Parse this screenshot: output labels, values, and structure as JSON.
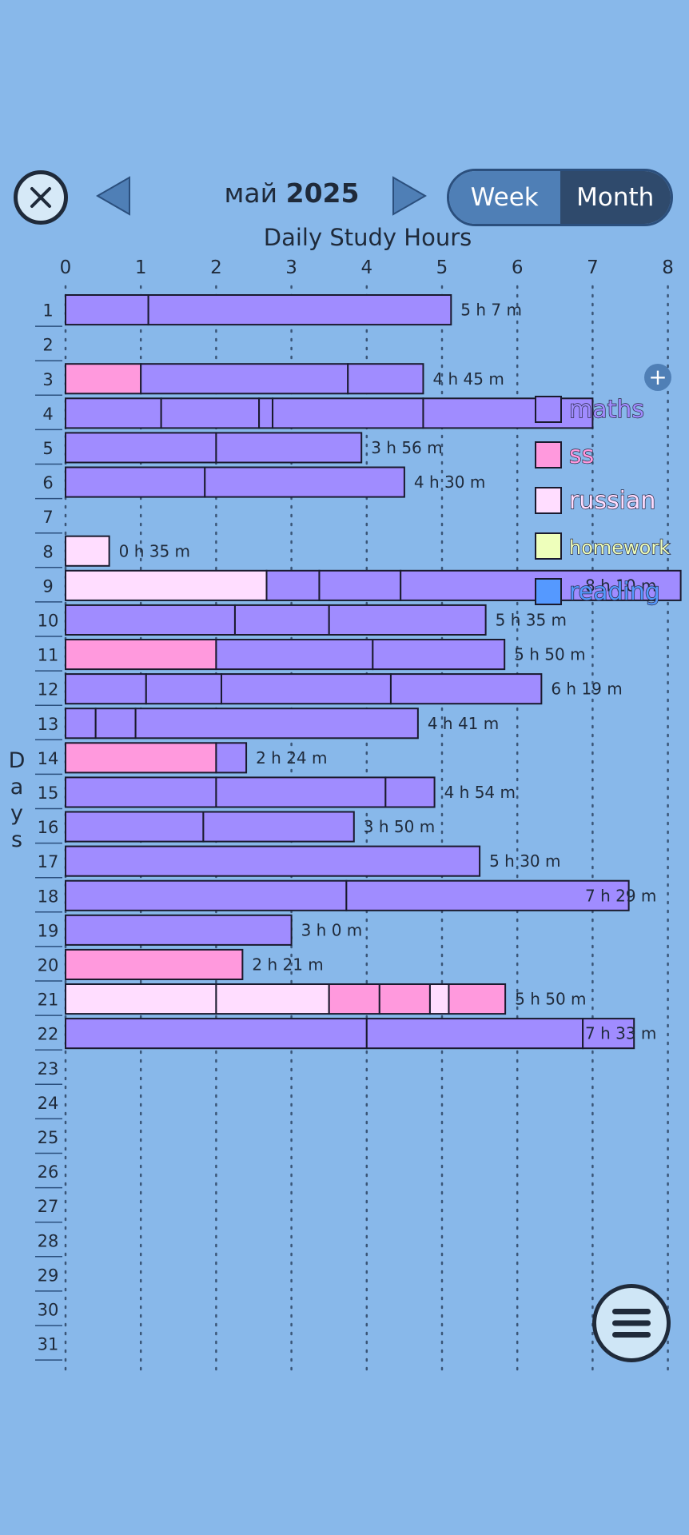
{
  "header": {
    "month": "май",
    "year": "2025",
    "toggle_week": "Week",
    "toggle_month": "Month",
    "selected_view": "Month"
  },
  "axis_title": "Days",
  "chart_data": {
    "type": "bar",
    "orientation": "horizontal",
    "stacked": true,
    "title": "Daily Study Hours",
    "xlabel": "",
    "ylabel": "Days",
    "xlim": [
      0,
      8
    ],
    "x_ticks": [
      "0",
      "1",
      "2",
      "3",
      "4",
      "5",
      "6",
      "7",
      "8"
    ],
    "grid": "vertical dotted",
    "categories": [
      "1",
      "2",
      "3",
      "4",
      "5",
      "6",
      "7",
      "8",
      "9",
      "10",
      "11",
      "12",
      "13",
      "14",
      "15",
      "16",
      "17",
      "18",
      "19",
      "20",
      "21",
      "22",
      "23",
      "24",
      "25",
      "26",
      "27",
      "28",
      "29",
      "30",
      "31"
    ],
    "legend": [
      {
        "name": "maths",
        "color": "#a08cff"
      },
      {
        "name": "ss",
        "color": "#ff99dd"
      },
      {
        "name": "russian",
        "color": "#ffddff"
      },
      {
        "name": "homework",
        "color": "#eeffbb"
      },
      {
        "name": "reading",
        "color": "#5599ff"
      }
    ],
    "legend_position": "right",
    "rows": [
      {
        "day": "1",
        "total_label": "5 h 7 m",
        "segments": [
          {
            "subject": "maths",
            "hours": 1.1
          },
          {
            "subject": "maths",
            "hours": 4.02
          }
        ]
      },
      {
        "day": "2",
        "total_label": "",
        "segments": []
      },
      {
        "day": "3",
        "total_label": "4 h 45 m",
        "segments": [
          {
            "subject": "ss",
            "hours": 1.0
          },
          {
            "subject": "maths",
            "hours": 2.75
          },
          {
            "subject": "maths",
            "hours": 1.0
          }
        ]
      },
      {
        "day": "4",
        "total_label": "",
        "segments": [
          {
            "subject": "maths",
            "hours": 1.27
          },
          {
            "subject": "maths",
            "hours": 1.3
          },
          {
            "subject": "maths",
            "hours": 0.18
          },
          {
            "subject": "maths",
            "hours": 2.0
          },
          {
            "subject": "maths",
            "hours": 2.25
          }
        ]
      },
      {
        "day": "5",
        "total_label": "3 h 56 m",
        "segments": [
          {
            "subject": "maths",
            "hours": 2.0
          },
          {
            "subject": "maths",
            "hours": 1.93
          }
        ]
      },
      {
        "day": "6",
        "total_label": "4 h 30 m",
        "segments": [
          {
            "subject": "maths",
            "hours": 1.85
          },
          {
            "subject": "maths",
            "hours": 2.65
          }
        ]
      },
      {
        "day": "7",
        "total_label": "",
        "segments": []
      },
      {
        "day": "8",
        "total_label": "0 h 35 m",
        "segments": [
          {
            "subject": "russian",
            "hours": 0.58
          }
        ]
      },
      {
        "day": "9",
        "total_label": "8 h 10 m",
        "segments": [
          {
            "subject": "russian",
            "hours": 2.67
          },
          {
            "subject": "maths",
            "hours": 0.7
          },
          {
            "subject": "maths",
            "hours": 1.08
          },
          {
            "subject": "maths",
            "hours": 3.72
          }
        ]
      },
      {
        "day": "10",
        "total_label": "5 h 35 m",
        "segments": [
          {
            "subject": "maths",
            "hours": 2.25
          },
          {
            "subject": "maths",
            "hours": 1.25
          },
          {
            "subject": "maths",
            "hours": 2.08
          }
        ]
      },
      {
        "day": "11",
        "total_label": "5 h 50 m",
        "segments": [
          {
            "subject": "ss",
            "hours": 2.0
          },
          {
            "subject": "maths",
            "hours": 2.08
          },
          {
            "subject": "maths",
            "hours": 1.75
          }
        ]
      },
      {
        "day": "12",
        "total_label": "6 h 19 m",
        "segments": [
          {
            "subject": "maths",
            "hours": 1.07
          },
          {
            "subject": "maths",
            "hours": 1.0
          },
          {
            "subject": "maths",
            "hours": 2.25
          },
          {
            "subject": "maths",
            "hours": 2.0
          }
        ]
      },
      {
        "day": "13",
        "total_label": "4 h 41 m",
        "segments": [
          {
            "subject": "maths",
            "hours": 0.4
          },
          {
            "subject": "maths",
            "hours": 0.53
          },
          {
            "subject": "maths",
            "hours": 3.75
          }
        ]
      },
      {
        "day": "14",
        "total_label": "2 h 24 m",
        "segments": [
          {
            "subject": "ss",
            "hours": 2.0
          },
          {
            "subject": "maths",
            "hours": 0.4
          }
        ]
      },
      {
        "day": "15",
        "total_label": "4 h 54 m",
        "segments": [
          {
            "subject": "maths",
            "hours": 2.0
          },
          {
            "subject": "maths",
            "hours": 2.25
          },
          {
            "subject": "maths",
            "hours": 0.65
          }
        ]
      },
      {
        "day": "16",
        "total_label": "3 h 50 m",
        "segments": [
          {
            "subject": "maths",
            "hours": 1.83
          },
          {
            "subject": "maths",
            "hours": 2.0
          }
        ]
      },
      {
        "day": "17",
        "total_label": "5 h 30 m",
        "segments": [
          {
            "subject": "maths",
            "hours": 5.5
          }
        ]
      },
      {
        "day": "18",
        "total_label": "7 h 29 m",
        "segments": [
          {
            "subject": "maths",
            "hours": 3.73
          },
          {
            "subject": "maths",
            "hours": 3.75
          }
        ]
      },
      {
        "day": "19",
        "total_label": "3 h 0 m",
        "segments": [
          {
            "subject": "maths",
            "hours": 3.0
          }
        ]
      },
      {
        "day": "20",
        "total_label": "2 h 21 m",
        "segments": [
          {
            "subject": "ss",
            "hours": 2.35
          }
        ]
      },
      {
        "day": "21",
        "total_label": "5 h 50 m",
        "segments": [
          {
            "subject": "russian",
            "hours": 2.0
          },
          {
            "subject": "russian",
            "hours": 1.5
          },
          {
            "subject": "ss",
            "hours": 0.67
          },
          {
            "subject": "ss",
            "hours": 0.67
          },
          {
            "subject": "russian",
            "hours": 0.25
          },
          {
            "subject": "ss",
            "hours": 0.75
          }
        ]
      },
      {
        "day": "22",
        "total_label": "7 h 33 m",
        "segments": [
          {
            "subject": "maths",
            "hours": 4.0
          },
          {
            "subject": "maths",
            "hours": 2.87
          },
          {
            "subject": "maths",
            "hours": 0.68
          }
        ]
      },
      {
        "day": "23",
        "total_label": "",
        "segments": []
      },
      {
        "day": "24",
        "total_label": "",
        "segments": []
      },
      {
        "day": "25",
        "total_label": "",
        "segments": []
      },
      {
        "day": "26",
        "total_label": "",
        "segments": []
      },
      {
        "day": "27",
        "total_label": "",
        "segments": []
      },
      {
        "day": "28",
        "total_label": "",
        "segments": []
      },
      {
        "day": "29",
        "total_label": "",
        "segments": []
      },
      {
        "day": "30",
        "total_label": "",
        "segments": []
      },
      {
        "day": "31",
        "total_label": "",
        "segments": []
      }
    ]
  }
}
